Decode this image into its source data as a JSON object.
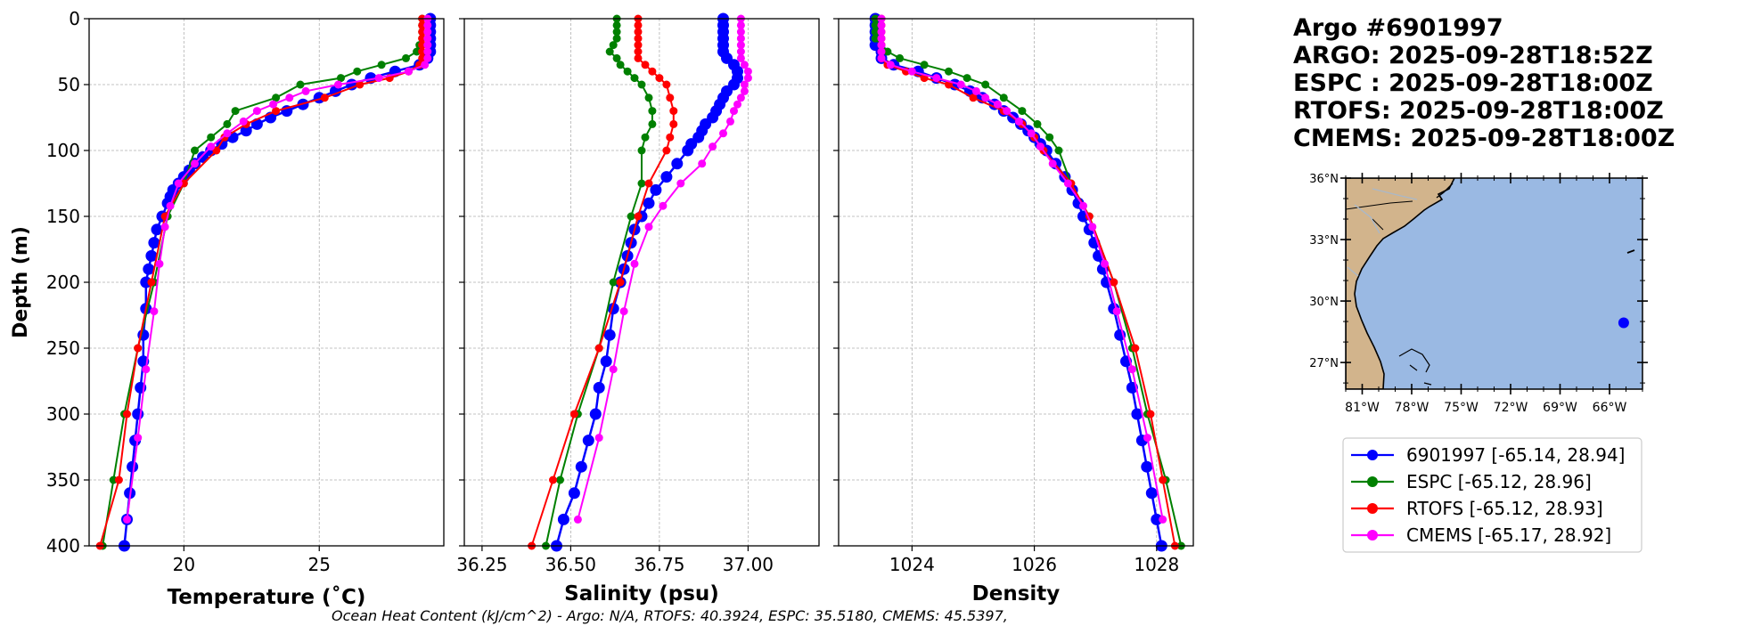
{
  "header": {
    "line1": "Argo #6901997",
    "line2": "ARGO: 2025-09-28T18:52Z",
    "line3": "ESPC : 2025-09-28T18:00Z",
    "line4": "RTOFS: 2025-09-28T18:00Z",
    "line5": "CMEMS: 2025-09-28T18:00Z"
  },
  "footer": "Ocean Heat Content (kJ/cm^2) - Argo: N/A,  RTOFS: 40.3924,  ESPC: 35.5180,  CMEMS: 45.5397,",
  "colors": {
    "argo": "#0000ff",
    "espc": "#008000",
    "rtofs": "#ff0000",
    "cmems": "#ff00ff",
    "ocean": "#9ab9e3",
    "land": "#d2b48c"
  },
  "legend": [
    {
      "label": "6901997 [-65.14, 28.94]",
      "color": "#0000ff"
    },
    {
      "label": "ESPC [-65.12, 28.96]",
      "color": "#008000"
    },
    {
      "label": "RTOFS [-65.12, 28.93]",
      "color": "#ff0000"
    },
    {
      "label": "CMEMS [-65.17, 28.92]",
      "color": "#ff00ff"
    }
  ],
  "map": {
    "lat_ticks": [
      "36°N",
      "33°N",
      "30°N",
      "27°N"
    ],
    "lon_ticks": [
      "81°W",
      "78°W",
      "75°W",
      "72°W",
      "69°W",
      "66°W"
    ],
    "lat_values": [
      36,
      33,
      30,
      27
    ],
    "lon_values": [
      -81,
      -78,
      -75,
      -72,
      -69,
      -66
    ],
    "extent": {
      "lon_min": -82,
      "lon_max": -64,
      "lat_min": 25.7,
      "lat_max": 36
    },
    "float": {
      "lon": -65.14,
      "lat": 28.94
    }
  },
  "chart_data": [
    {
      "type": "line",
      "name": "temperature",
      "xlabel": "Temperature (˚C)",
      "ylabel": "Depth (m)",
      "xlim": [
        16.5,
        29.6
      ],
      "ylim": [
        400,
        0
      ],
      "xticks": [
        20,
        25
      ],
      "xtick_labels": [
        "20",
        "25"
      ],
      "yticks": [
        0,
        50,
        100,
        150,
        200,
        250,
        300,
        350,
        400
      ],
      "ytick_labels": [
        "0",
        "50",
        "100",
        "150",
        "200",
        "250",
        "300",
        "350",
        "400"
      ],
      "series": [
        {
          "name": "6901997",
          "marker_size": 6.5,
          "depth": [
            0,
            5,
            10,
            15,
            20,
            25,
            30,
            35,
            40,
            45,
            50,
            55,
            60,
            65,
            70,
            75,
            80,
            85,
            90,
            95,
            100,
            105,
            110,
            115,
            120,
            125,
            130,
            135,
            140,
            150,
            160,
            170,
            180,
            190,
            200,
            220,
            240,
            260,
            280,
            300,
            320,
            340,
            360,
            380,
            400
          ],
          "values": [
            29.1,
            29.1,
            29.1,
            29.1,
            29.1,
            29.1,
            29.0,
            28.7,
            27.8,
            26.9,
            26.2,
            25.6,
            25.0,
            24.4,
            23.8,
            23.2,
            22.7,
            22.3,
            21.8,
            21.4,
            21.0,
            20.7,
            20.4,
            20.2,
            20.0,
            19.8,
            19.6,
            19.5,
            19.4,
            19.2,
            19.0,
            18.9,
            18.8,
            18.7,
            18.6,
            18.6,
            18.5,
            18.5,
            18.4,
            18.3,
            18.2,
            18.1,
            18.0,
            17.9,
            17.8
          ]
        },
        {
          "name": "ESPC",
          "marker_size": 4.5,
          "depth": [
            0,
            5,
            10,
            15,
            20,
            25,
            30,
            35,
            40,
            45,
            50,
            60,
            70,
            80,
            90,
            100,
            125,
            150,
            200,
            250,
            300,
            350,
            400
          ],
          "values": [
            28.8,
            28.8,
            28.8,
            28.8,
            28.7,
            28.6,
            28.2,
            27.3,
            26.4,
            25.8,
            24.3,
            23.4,
            21.9,
            21.6,
            21.0,
            20.4,
            20.0,
            19.4,
            18.9,
            18.3,
            17.8,
            17.4,
            17.0
          ]
        },
        {
          "name": "RTOFS",
          "marker_size": 4.5,
          "depth": [
            0,
            5,
            10,
            15,
            20,
            25,
            30,
            35,
            40,
            45,
            50,
            60,
            70,
            80,
            90,
            100,
            125,
            150,
            200,
            250,
            300,
            350,
            400
          ],
          "values": [
            28.8,
            28.8,
            28.8,
            28.8,
            28.8,
            28.8,
            28.8,
            28.7,
            28.3,
            27.6,
            26.5,
            25.2,
            23.4,
            22.3,
            21.5,
            21.2,
            20.0,
            19.3,
            18.8,
            18.3,
            17.9,
            17.6,
            16.9
          ]
        },
        {
          "name": "CMEMS",
          "marker_size": 4.5,
          "depth": [
            0,
            5,
            10,
            15,
            20,
            25,
            30,
            35,
            40,
            45,
            50,
            55,
            60,
            65,
            70,
            78,
            87,
            97,
            110,
            125,
            142,
            158,
            186,
            222,
            266,
            318,
            380
          ],
          "values": [
            29.0,
            29.0,
            29.0,
            29.0,
            29.0,
            29.0,
            29.0,
            28.9,
            28.3,
            27.2,
            25.7,
            24.5,
            23.9,
            23.3,
            22.7,
            22.2,
            21.6,
            21.0,
            20.4,
            19.8,
            19.5,
            19.3,
            19.1,
            18.9,
            18.6,
            18.3,
            17.9
          ]
        }
      ]
    },
    {
      "type": "line",
      "name": "salinity",
      "xlabel": "Salinity (psu)",
      "ylabel": "",
      "xlim": [
        36.2,
        37.2
      ],
      "ylim": [
        400,
        0
      ],
      "xticks": [
        36.25,
        36.5,
        36.75,
        37.0
      ],
      "xtick_labels": [
        "36.25",
        "36.50",
        "36.75",
        "37.00"
      ],
      "series": [
        {
          "name": "6901997",
          "marker_size": 6.5,
          "depth": [
            0,
            5,
            10,
            15,
            20,
            25,
            30,
            35,
            40,
            45,
            50,
            55,
            60,
            65,
            70,
            75,
            80,
            85,
            90,
            95,
            100,
            110,
            120,
            130,
            140,
            150,
            160,
            170,
            180,
            190,
            200,
            220,
            240,
            260,
            280,
            300,
            320,
            340,
            360,
            380,
            400
          ],
          "values": [
            36.93,
            36.93,
            36.93,
            36.93,
            36.93,
            36.93,
            36.94,
            36.96,
            36.97,
            36.97,
            36.96,
            36.94,
            36.93,
            36.92,
            36.91,
            36.9,
            36.88,
            36.87,
            36.86,
            36.84,
            36.83,
            36.8,
            36.77,
            36.74,
            36.72,
            36.7,
            36.68,
            36.67,
            36.66,
            36.65,
            36.64,
            36.62,
            36.61,
            36.6,
            36.58,
            36.57,
            36.55,
            36.53,
            36.51,
            36.48,
            36.46
          ]
        },
        {
          "name": "ESPC",
          "marker_size": 4.5,
          "depth": [
            0,
            5,
            10,
            15,
            20,
            25,
            30,
            35,
            40,
            45,
            50,
            60,
            70,
            80,
            90,
            100,
            125,
            150,
            200,
            250,
            300,
            350,
            400
          ],
          "values": [
            36.63,
            36.63,
            36.63,
            36.63,
            36.62,
            36.61,
            36.63,
            36.64,
            36.66,
            36.68,
            36.7,
            36.72,
            36.73,
            36.73,
            36.71,
            36.7,
            36.7,
            36.67,
            36.62,
            36.58,
            36.52,
            36.47,
            36.43
          ]
        },
        {
          "name": "RTOFS",
          "marker_size": 4.5,
          "depth": [
            0,
            5,
            10,
            15,
            20,
            25,
            30,
            35,
            40,
            45,
            50,
            60,
            70,
            80,
            90,
            100,
            125,
            150,
            200,
            250,
            300,
            350,
            400
          ],
          "values": [
            36.69,
            36.69,
            36.69,
            36.69,
            36.69,
            36.69,
            36.69,
            36.71,
            36.73,
            36.75,
            36.77,
            36.78,
            36.79,
            36.79,
            36.78,
            36.77,
            36.72,
            36.69,
            36.64,
            36.58,
            36.51,
            36.45,
            36.39
          ]
        },
        {
          "name": "CMEMS",
          "marker_size": 4.5,
          "depth": [
            0,
            5,
            10,
            15,
            20,
            25,
            30,
            35,
            40,
            45,
            50,
            55,
            60,
            65,
            70,
            78,
            87,
            97,
            110,
            125,
            142,
            158,
            186,
            222,
            266,
            318,
            380
          ],
          "values": [
            36.98,
            36.98,
            36.98,
            36.98,
            36.98,
            36.98,
            36.98,
            36.99,
            37.0,
            37.0,
            36.99,
            36.99,
            36.98,
            36.97,
            36.96,
            36.95,
            36.93,
            36.9,
            36.87,
            36.81,
            36.76,
            36.72,
            36.68,
            36.65,
            36.62,
            36.58,
            36.52
          ]
        }
      ]
    },
    {
      "type": "line",
      "name": "density",
      "xlabel": "Density",
      "ylabel": "",
      "xlim": [
        1022.8,
        1028.6
      ],
      "ylim": [
        400,
        0
      ],
      "xticks": [
        1024,
        1026,
        1028
      ],
      "xtick_labels": [
        "1024",
        "1026",
        "1028"
      ],
      "series": [
        {
          "name": "6901997",
          "marker_size": 6.5,
          "depth": [
            0,
            5,
            10,
            15,
            20,
            25,
            30,
            35,
            40,
            45,
            50,
            55,
            60,
            65,
            70,
            75,
            80,
            85,
            90,
            95,
            100,
            110,
            120,
            130,
            140,
            150,
            160,
            170,
            180,
            190,
            200,
            220,
            240,
            260,
            280,
            300,
            320,
            340,
            360,
            380,
            400
          ],
          "values": [
            1023.4,
            1023.4,
            1023.4,
            1023.4,
            1023.4,
            1023.5,
            1023.5,
            1023.7,
            1024.1,
            1024.4,
            1024.7,
            1024.95,
            1025.15,
            1025.35,
            1025.5,
            1025.65,
            1025.78,
            1025.9,
            1026.0,
            1026.1,
            1026.2,
            1026.35,
            1026.5,
            1026.62,
            1026.72,
            1026.8,
            1026.9,
            1026.98,
            1027.05,
            1027.12,
            1027.18,
            1027.3,
            1027.4,
            1027.5,
            1027.6,
            1027.68,
            1027.76,
            1027.84,
            1027.92,
            1028.0,
            1028.08
          ]
        },
        {
          "name": "ESPC",
          "marker_size": 4.5,
          "depth": [
            0,
            5,
            10,
            15,
            20,
            25,
            30,
            35,
            40,
            45,
            50,
            60,
            70,
            80,
            90,
            100,
            125,
            150,
            200,
            250,
            300,
            350,
            400
          ],
          "values": [
            1023.4,
            1023.4,
            1023.4,
            1023.4,
            1023.5,
            1023.6,
            1023.8,
            1024.2,
            1024.6,
            1024.9,
            1025.2,
            1025.5,
            1025.8,
            1026.05,
            1026.25,
            1026.4,
            1026.6,
            1026.9,
            1027.3,
            1027.6,
            1027.85,
            1028.15,
            1028.4
          ]
        },
        {
          "name": "RTOFS",
          "marker_size": 4.5,
          "depth": [
            0,
            5,
            10,
            15,
            20,
            25,
            30,
            35,
            40,
            45,
            50,
            60,
            70,
            80,
            90,
            100,
            125,
            150,
            200,
            250,
            300,
            350,
            400
          ],
          "values": [
            1023.5,
            1023.5,
            1023.5,
            1023.5,
            1023.5,
            1023.5,
            1023.5,
            1023.6,
            1023.9,
            1024.2,
            1024.6,
            1025.0,
            1025.5,
            1025.8,
            1026.0,
            1026.15,
            1026.6,
            1026.9,
            1027.3,
            1027.65,
            1027.9,
            1028.1,
            1028.3
          ]
        },
        {
          "name": "CMEMS",
          "marker_size": 4.5,
          "depth": [
            0,
            5,
            10,
            15,
            20,
            25,
            30,
            35,
            40,
            45,
            50,
            55,
            60,
            65,
            70,
            78,
            87,
            97,
            110,
            125,
            142,
            158,
            186,
            222,
            266,
            318,
            380
          ],
          "values": [
            1023.5,
            1023.5,
            1023.5,
            1023.5,
            1023.5,
            1023.5,
            1023.5,
            1023.65,
            1024.0,
            1024.4,
            1024.8,
            1025.05,
            1025.2,
            1025.4,
            1025.55,
            1025.75,
            1025.95,
            1026.1,
            1026.3,
            1026.55,
            1026.8,
            1026.95,
            1027.15,
            1027.35,
            1027.6,
            1027.85,
            1028.1
          ]
        }
      ]
    }
  ]
}
